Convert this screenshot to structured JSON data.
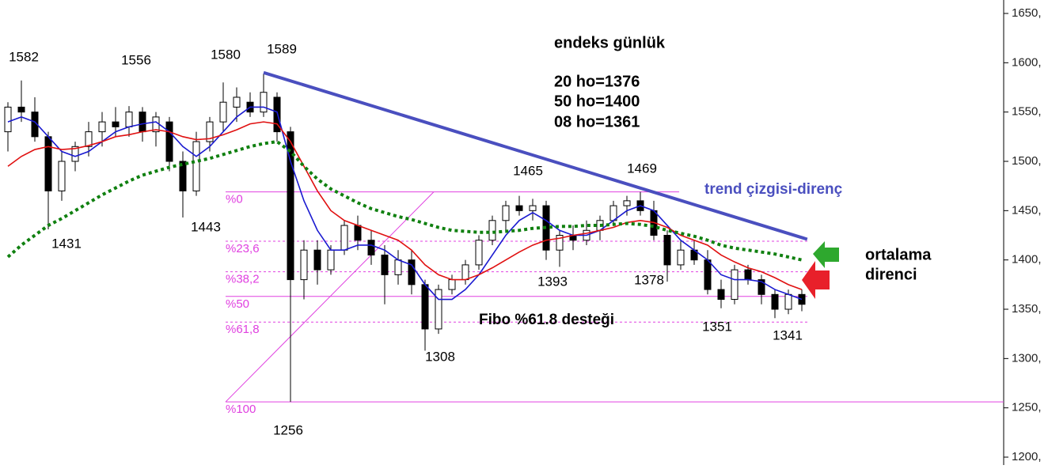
{
  "chart_data": {
    "type": "candlestick",
    "open": [
      1530,
      1555,
      1550,
      1525,
      1470,
      1500,
      1515,
      1530,
      1540,
      1535,
      1550,
      1530,
      1540,
      1500,
      1470,
      1520,
      1540,
      1555,
      1560,
      1550,
      1565,
      1530,
      1380,
      1410,
      1390,
      1410,
      1435,
      1420,
      1405,
      1385,
      1400,
      1375,
      1330,
      1370,
      1380,
      1395,
      1420,
      1440,
      1455,
      1450,
      1455,
      1410,
      1425,
      1420,
      1430,
      1440,
      1455,
      1460,
      1450,
      1425,
      1395,
      1410,
      1400,
      1370,
      1360,
      1390,
      1380,
      1365,
      1350,
      1365
    ],
    "high": [
      1560,
      1582,
      1565,
      1530,
      1510,
      1520,
      1540,
      1550,
      1555,
      1556,
      1555,
      1550,
      1545,
      1510,
      1530,
      1545,
      1580,
      1575,
      1570,
      1589,
      1570,
      1535,
      1420,
      1420,
      1415,
      1440,
      1445,
      1430,
      1415,
      1410,
      1410,
      1380,
      1375,
      1385,
      1400,
      1425,
      1445,
      1460,
      1465,
      1462,
      1460,
      1430,
      1435,
      1440,
      1445,
      1460,
      1465,
      1469,
      1460,
      1430,
      1420,
      1420,
      1410,
      1380,
      1395,
      1395,
      1385,
      1370,
      1370,
      1370
    ],
    "low": [
      1510,
      1540,
      1520,
      1431,
      1460,
      1490,
      1505,
      1515,
      1525,
      1525,
      1520,
      1515,
      1490,
      1443,
      1465,
      1510,
      1530,
      1540,
      1545,
      1545,
      1520,
      1256,
      1360,
      1375,
      1385,
      1405,
      1410,
      1395,
      1355,
      1375,
      1365,
      1308,
      1325,
      1365,
      1375,
      1390,
      1415,
      1430,
      1445,
      1440,
      1400,
      1393,
      1410,
      1415,
      1420,
      1435,
      1445,
      1445,
      1420,
      1378,
      1390,
      1395,
      1365,
      1351,
      1355,
      1375,
      1355,
      1341,
      1345,
      1348
    ],
    "close": [
      1555,
      1550,
      1525,
      1470,
      1500,
      1515,
      1530,
      1540,
      1535,
      1550,
      1530,
      1545,
      1500,
      1470,
      1520,
      1540,
      1560,
      1565,
      1550,
      1570,
      1530,
      1380,
      1410,
      1390,
      1410,
      1435,
      1420,
      1405,
      1385,
      1400,
      1375,
      1330,
      1370,
      1380,
      1395,
      1420,
      1440,
      1455,
      1450,
      1455,
      1410,
      1425,
      1420,
      1430,
      1440,
      1455,
      1460,
      1450,
      1425,
      1395,
      1410,
      1400,
      1370,
      1360,
      1390,
      1380,
      1365,
      1350,
      1365,
      1355
    ],
    "series": [
      {
        "color": "#1a1ad0",
        "values": [
          1540,
          1545,
          1540,
          1525,
          1510,
          1505,
          1510,
          1520,
          1530,
          1535,
          1538,
          1540,
          1530,
          1515,
          1505,
          1515,
          1530,
          1545,
          1555,
          1555,
          1550,
          1500,
          1460,
          1430,
          1410,
          1410,
          1415,
          1415,
          1410,
          1400,
          1395,
          1375,
          1360,
          1360,
          1370,
          1385,
          1405,
          1425,
          1440,
          1448,
          1440,
          1430,
          1425,
          1425,
          1430,
          1440,
          1450,
          1455,
          1450,
          1435,
          1420,
          1410,
          1400,
          1385,
          1380,
          1380,
          1378,
          1370,
          1365,
          1360
        ]
      },
      {
        "color": "#e01010",
        "values": [
          1495,
          1505,
          1512,
          1515,
          1512,
          1513,
          1516,
          1520,
          1525,
          1527,
          1530,
          1532,
          1530,
          1525,
          1522,
          1523,
          1527,
          1532,
          1538,
          1540,
          1538,
          1520,
          1495,
          1470,
          1450,
          1440,
          1435,
          1430,
          1425,
          1420,
          1410,
          1395,
          1385,
          1380,
          1380,
          1385,
          1392,
          1400,
          1408,
          1415,
          1420,
          1422,
          1425,
          1427,
          1430,
          1433,
          1438,
          1440,
          1438,
          1433,
          1425,
          1420,
          1415,
          1405,
          1398,
          1392,
          1388,
          1382,
          1375,
          1370
        ]
      },
      {
        "color": "#108010",
        "dotted": true,
        "values": [
          1403,
          1415,
          1425,
          1435,
          1442,
          1450,
          1458,
          1466,
          1473,
          1480,
          1486,
          1490,
          1494,
          1497,
          1500,
          1503,
          1507,
          1511,
          1515,
          1518,
          1520,
          1510,
          1495,
          1482,
          1472,
          1465,
          1458,
          1452,
          1448,
          1444,
          1441,
          1437,
          1433,
          1430,
          1429,
          1428,
          1428,
          1429,
          1430,
          1432,
          1433,
          1434,
          1434,
          1435,
          1435,
          1436,
          1437,
          1436,
          1434,
          1430,
          1427,
          1424,
          1420,
          1415,
          1412,
          1410,
          1408,
          1406,
          1403,
          1400
        ]
      }
    ],
    "ylim": [
      1200,
      1650
    ],
    "yticks": [
      {
        "value": 1200,
        "label": "1200,"
      },
      {
        "value": 1250,
        "label": "1250,"
      },
      {
        "value": 1300,
        "label": "1300,"
      },
      {
        "value": 1350,
        "label": "1350,"
      },
      {
        "value": 1400,
        "label": "1400,"
      },
      {
        "value": 1450,
        "label": "1450,"
      },
      {
        "value": 1500,
        "label": "1500,"
      },
      {
        "value": 1550,
        "label": "1550,"
      },
      {
        "value": 1600,
        "label": "1600,"
      },
      {
        "value": 1650,
        "label": "1650,"
      }
    ],
    "peak_labels": [
      1582,
      1556,
      1580,
      1589,
      1431,
      1443,
      1465,
      1469,
      1393,
      1378,
      1308,
      1351,
      1341,
      1256
    ],
    "fibonacci": {
      "color": "#e040e0",
      "levels": [
        {
          "value": 1469,
          "label": "%0"
        },
        {
          "value": 1419,
          "label": "%23,6"
        },
        {
          "value": 1388,
          "label": "%38,2"
        },
        {
          "value": 1363,
          "label": "%50"
        },
        {
          "value": 1337,
          "label": "%61,8"
        },
        {
          "value": 1256,
          "label": "%100"
        }
      ],
      "support_text": "Fibo %61.8 desteği"
    },
    "trend_line": {
      "label": "trend çizgisi-direnç",
      "color": "#4a4fbf",
      "points": [
        [
          19,
          1590
        ],
        [
          59.4,
          1421
        ]
      ]
    },
    "info": [
      "endeks günlük",
      "20 ho=1376",
      "50 ho=1400",
      "08 ho=1361"
    ],
    "resistance_text": [
      "ortalama",
      "direnci"
    ]
  }
}
